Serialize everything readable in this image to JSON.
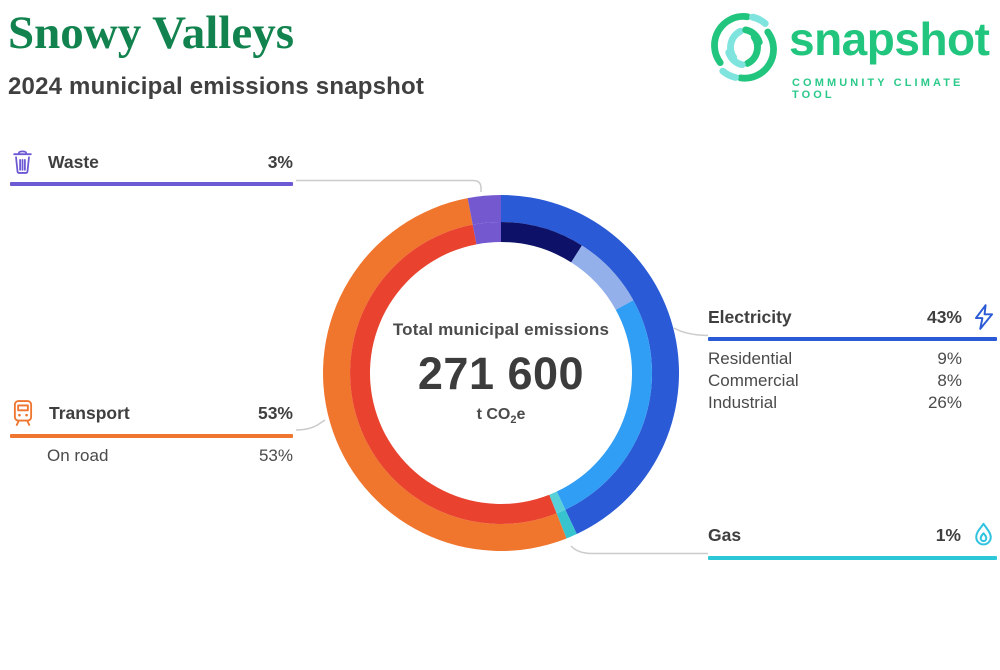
{
  "header": {
    "title": "Snowy Valleys",
    "subtitle": "2024 municipal emissions snapshot"
  },
  "logo": {
    "wordmark": "snapshot",
    "tagline": "COMMUNITY CLIMATE TOOL"
  },
  "donut_center": {
    "label": "Total municipal emissions",
    "value": "271 600",
    "unit_base": "t CO",
    "unit_sub": "2",
    "unit_tail": "e"
  },
  "sectors": {
    "waste": {
      "label": "Waste",
      "value": "3%"
    },
    "transport": {
      "label": "Transport",
      "value": "53%",
      "sub": [
        {
          "label": "On road",
          "value": "53%"
        }
      ]
    },
    "electricity": {
      "label": "Electricity",
      "value": "43%",
      "sub": [
        {
          "label": "Residential",
          "value": "9%"
        },
        {
          "label": "Commercial",
          "value": "8%"
        },
        {
          "label": "Industrial",
          "value": "26%"
        }
      ]
    },
    "gas": {
      "label": "Gas",
      "value": "1%"
    }
  },
  "chart_data": {
    "type": "pie",
    "variant": "two-ring donut",
    "title": "2024 municipal emissions snapshot",
    "total_label": "Total municipal emissions",
    "total_value": 271600,
    "total_value_display": "271 600",
    "unit": "t CO2e",
    "start_angle_deg": 0,
    "direction": "clockwise",
    "legend_position": "callout-labels",
    "categories": [
      {
        "name": "Electricity",
        "percent": 43,
        "color": "#2B5AD6",
        "icon": "bolt-icon",
        "subsectors": [
          {
            "name": "Residential",
            "percent": 9,
            "color": "#0D1268"
          },
          {
            "name": "Commercial",
            "percent": 8,
            "color": "#93B0EA"
          },
          {
            "name": "Industrial",
            "percent": 26,
            "color": "#2F9EF4"
          }
        ]
      },
      {
        "name": "Gas",
        "percent": 1,
        "color": "#38C4CE",
        "icon": "flame-icon",
        "subsectors": [
          {
            "name": "Gas",
            "percent": 1,
            "color": "#59D0D8"
          }
        ]
      },
      {
        "name": "Transport",
        "percent": 53,
        "color": "#F0752D",
        "icon": "tram-icon",
        "subsectors": [
          {
            "name": "On road",
            "percent": 53,
            "color": "#E94330"
          }
        ]
      },
      {
        "name": "Waste",
        "percent": 3,
        "color": "#7458D0",
        "icon": "trash-icon",
        "subsectors": [
          {
            "name": "Waste",
            "percent": 3,
            "color": "#7458D0"
          }
        ]
      }
    ]
  },
  "colors": {
    "title_green": "#12834E",
    "text_dark": "#3F3F3F",
    "logo_green": "#22C57E",
    "logo_teal": "#7FE3DE",
    "electricity_blue": "#2B5AD6",
    "gas_teal": "#2CC8D8",
    "transport_orange": "#EE7630",
    "waste_purple": "#6C59D4",
    "leader_gray": "#CBCBCB"
  }
}
